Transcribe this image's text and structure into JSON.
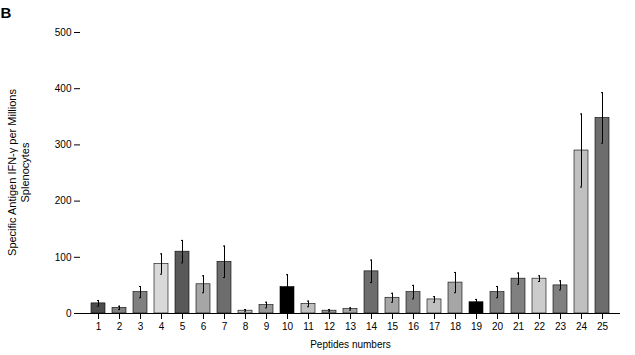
{
  "chart_data": {
    "type": "bar",
    "xlabel": "Peptides numbers",
    "ylabel": "Specific Antigen IFN-γ per Millions\nSplenocytes",
    "annotations": [
      "B"
    ],
    "categories": [
      "1",
      "2",
      "3",
      "4",
      "5",
      "6",
      "7",
      "8",
      "9",
      "10",
      "11",
      "12",
      "13",
      "14",
      "15",
      "16",
      "17",
      "18",
      "19",
      "20",
      "21",
      "22",
      "23",
      "24",
      "25"
    ],
    "values": [
      18,
      10,
      38,
      88,
      110,
      52,
      92,
      5,
      15,
      47,
      17,
      5,
      8,
      75,
      28,
      38,
      25,
      55,
      20,
      38,
      62,
      62,
      50,
      290,
      348
    ],
    "errors": [
      5,
      3,
      10,
      18,
      20,
      15,
      28,
      2,
      5,
      22,
      5,
      2,
      2,
      20,
      8,
      12,
      5,
      18,
      5,
      10,
      10,
      5,
      8,
      65,
      45
    ],
    "colors": [
      "#4d4d4d",
      "#808080",
      "#808080",
      "#d9d9d9",
      "#595959",
      "#a6a6a6",
      "#6d6d6d",
      "#c0c0c0",
      "#999999",
      "#000000",
      "#c0c0c0",
      "#999999",
      "#a6a6a6",
      "#6d6d6d",
      "#a6a6a6",
      "#808080",
      "#c0c0c0",
      "#a6a6a6",
      "#000000",
      "#808080",
      "#808080",
      "#cccccc",
      "#808080",
      "#c0c0c0",
      "#6d6d6d"
    ],
    "ylim": [
      0,
      500
    ],
    "yticks": [
      0,
      100,
      200,
      300,
      400,
      500
    ]
  }
}
